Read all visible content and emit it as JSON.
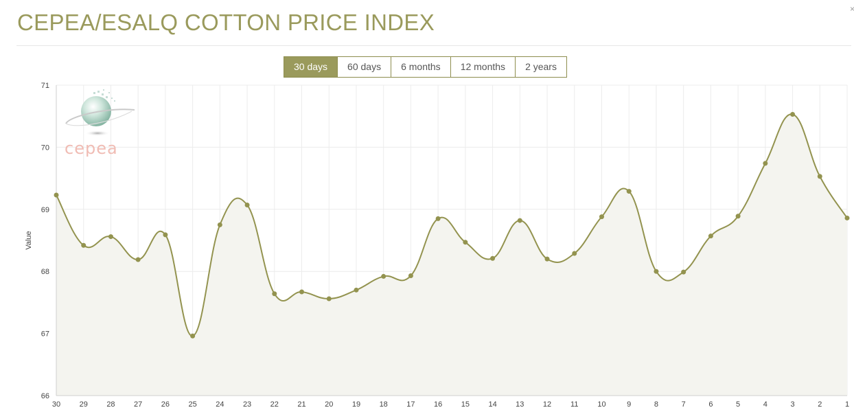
{
  "header": {
    "title": "CEPEA/ESALQ COTTON PRICE INDEX",
    "close_glyph": "×"
  },
  "range_tabs": [
    {
      "label": "30 days",
      "active": true
    },
    {
      "label": "60 days",
      "active": false
    },
    {
      "label": "6 months",
      "active": false
    },
    {
      "label": "12 months",
      "active": false
    },
    {
      "label": "2 years",
      "active": false
    }
  ],
  "logo": {
    "text": "cepea",
    "icon": "globe-logo-icon"
  },
  "colors": {
    "accent": "#9a9a5c",
    "line": "#93934f",
    "area": "#f4f4ef",
    "grid": "#ececec",
    "logo_text": "#f0bcb4"
  },
  "chart_data": {
    "type": "line",
    "title": "",
    "xlabel": "",
    "ylabel": "Value",
    "ylim": [
      66,
      71
    ],
    "yticks": [
      66,
      67,
      68,
      69,
      70,
      71
    ],
    "grid": true,
    "legend": "none",
    "categories": [
      "30",
      "29",
      "28",
      "27",
      "26",
      "25",
      "24",
      "23",
      "22",
      "21",
      "20",
      "19",
      "18",
      "17",
      "16",
      "15",
      "14",
      "13",
      "12",
      "11",
      "10",
      "9",
      "8",
      "7",
      "6",
      "5",
      "4",
      "3",
      "2",
      "1"
    ],
    "series": [
      {
        "values": [
          69.23,
          68.42,
          68.56,
          68.19,
          68.59,
          66.96,
          68.75,
          69.07,
          67.64,
          67.67,
          67.56,
          67.7,
          67.92,
          67.93,
          68.85,
          68.47,
          68.21,
          68.82,
          68.2,
          68.29,
          68.88,
          69.29,
          68.0,
          67.99,
          68.57,
          68.89,
          69.74,
          70.53,
          69.53,
          68.86
        ]
      }
    ]
  }
}
